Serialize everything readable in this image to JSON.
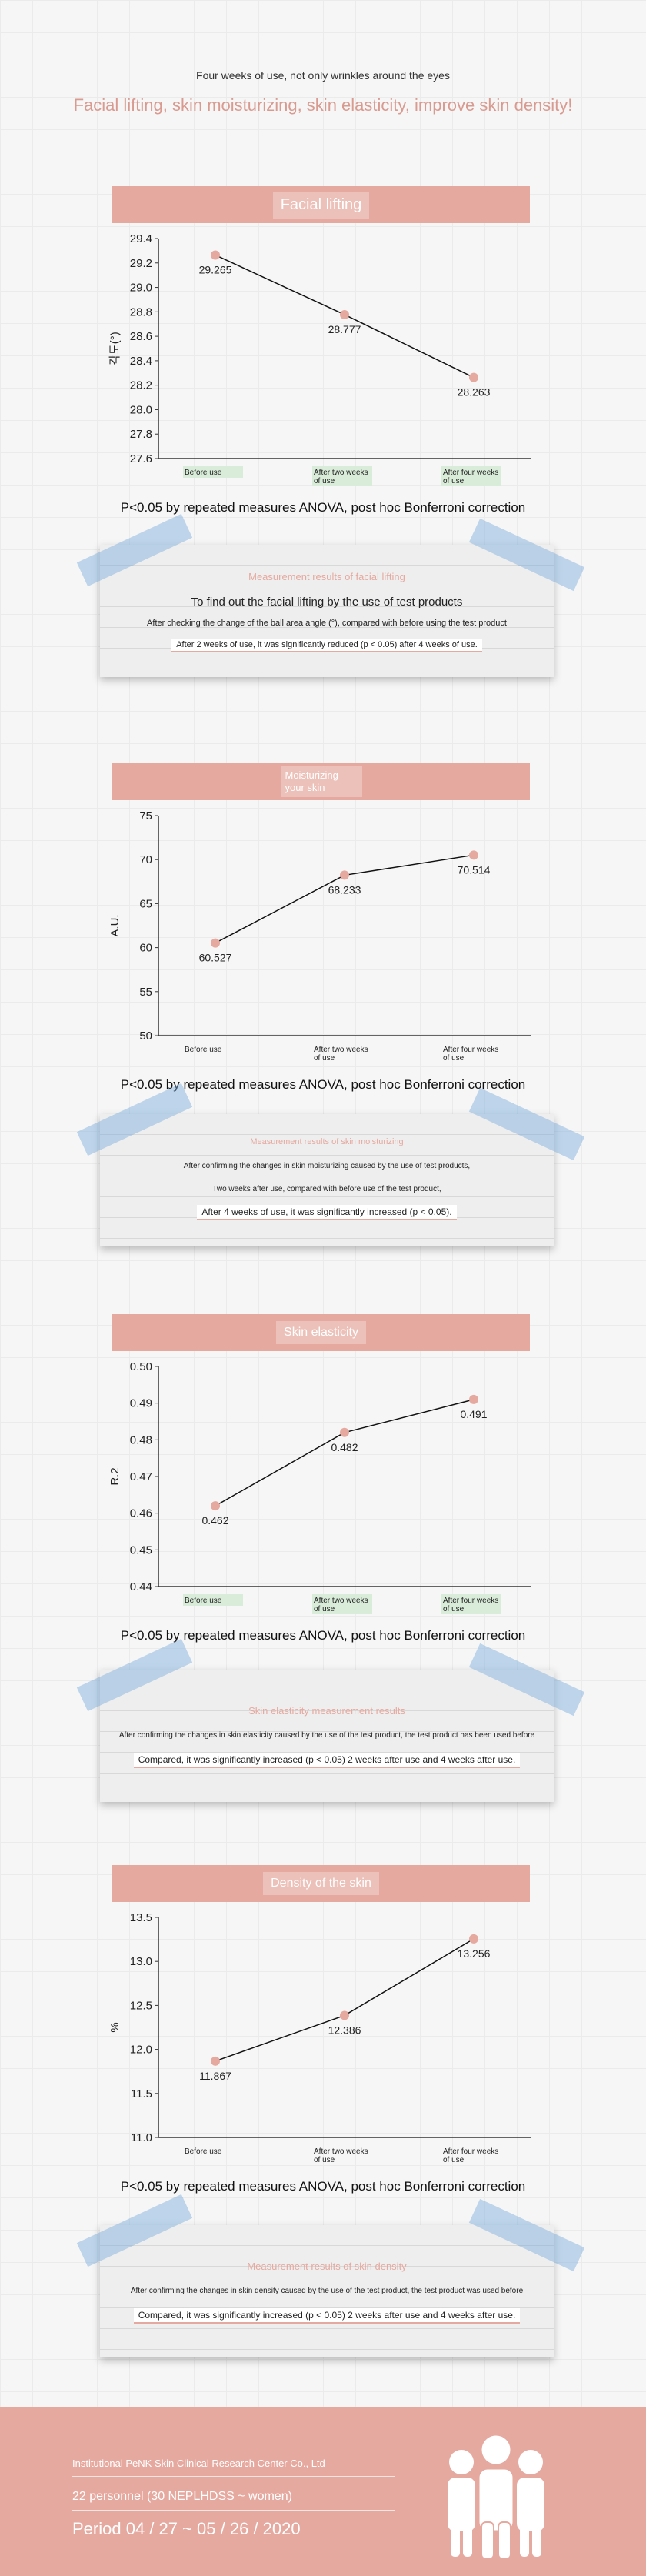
{
  "intro": {
    "subtitle": "Four weeks of use, not only wrinkles around the eyes",
    "title": "Facial lifting, skin moisturizing, skin elasticity, improve skin density!"
  },
  "stat_note": "P<0.05 by repeated measures ANOVA, post hoc Bonferroni correction",
  "sections": [
    {
      "bar_label": "Facial lifting",
      "card": {
        "title": "Measurement results of facial lifting",
        "lines": [
          "To find out the facial lifting by the use of test products",
          "After checking the change of the ball area angle (°), compared with before using the test product",
          "After 2 weeks of use, it was significantly reduced (p < 0.05) after 4 weeks of use."
        ]
      }
    },
    {
      "bar_label": "Moisturizing your skin",
      "card": {
        "title": "Measurement results of skin moisturizing",
        "lines": [
          "After confirming the changes in skin moisturizing caused by the use of test products,",
          "Two weeks after use, compared with before use of the test product,",
          "After 4 weeks of use, it was significantly increased (p < 0.05)."
        ]
      }
    },
    {
      "bar_label": "Skin elasticity",
      "card": {
        "title": "Skin elasticity measurement results",
        "lines": [
          "After confirming the changes in skin elasticity caused by the use of the test product, the test product has been used before",
          "Compared, it was significantly increased (p < 0.05) 2 weeks after use and 4 weeks after use."
        ]
      }
    },
    {
      "bar_label": "Density of the skin",
      "card": {
        "title": "Measurement results of skin density",
        "lines": [
          "After confirming the changes in skin density caused by the use of the test product, the test product was used before",
          "Compared, it was significantly increased (p < 0.05) 2 weeks after use and 4 weeks after use."
        ]
      }
    }
  ],
  "chart_data": [
    {
      "type": "line",
      "categories": [
        "Before use",
        "After two weeks of use",
        "After four weeks of use"
      ],
      "values": [
        29.265,
        28.777,
        28.263
      ],
      "data_labels": [
        "29.265",
        "28.777",
        "28.263"
      ],
      "ylabel": "각도(°)",
      "ylim": [
        27.6,
        29.4
      ],
      "yticks": [
        "29.4",
        "29.2",
        "29.0",
        "28.8",
        "28.6",
        "28.4",
        "28.2",
        "28.0",
        "27.8",
        "27.6"
      ],
      "marker_color": "#e5a99f",
      "category_highlight": "#d9ecd9"
    },
    {
      "type": "line",
      "categories": [
        "Before use",
        "After two weeks of use",
        "After four weeks of use"
      ],
      "values": [
        60.527,
        68.233,
        70.514
      ],
      "data_labels": [
        "60.527",
        "68.233",
        "70.514"
      ],
      "ylabel": "A.U.",
      "ylim": [
        50,
        75
      ],
      "yticks": [
        "75",
        "70",
        "65",
        "60",
        "55",
        "50"
      ],
      "marker_color": "#e5a99f",
      "category_highlight": ""
    },
    {
      "type": "line",
      "categories": [
        "Before use",
        "After two weeks of use",
        "After four weeks of use"
      ],
      "values": [
        0.462,
        0.482,
        0.491
      ],
      "data_labels": [
        "0.462",
        "0.482",
        "0.491"
      ],
      "ylabel": "R.2",
      "ylim": [
        0.44,
        0.5
      ],
      "yticks": [
        "0.50",
        "0.49",
        "0.48",
        "0.47",
        "0.46",
        "0.45",
        "0.44"
      ],
      "marker_color": "#e5a99f",
      "category_highlight": "#d9ecd9"
    },
    {
      "type": "line",
      "categories": [
        "Before use",
        "After two weeks of use",
        "After four weeks of use"
      ],
      "values": [
        11.867,
        12.386,
        13.256
      ],
      "data_labels": [
        "11.867",
        "12.386",
        "13.256"
      ],
      "ylabel": "%",
      "ylim": [
        11.0,
        13.5
      ],
      "yticks": [
        "13.5",
        "13.0",
        "12.5",
        "12.0",
        "11.5",
        "11.0"
      ],
      "marker_color": "#e5a99f",
      "category_highlight": ""
    }
  ],
  "footer": {
    "institution": "Institutional PeNK Skin Clinical Research Center Co., Ltd",
    "personnel": "22 personnel (30 NEPLHDSS ~ women)",
    "period": "Period 04 / 27 ~ 05 / 26 / 2020",
    "icon": "people-group-icon"
  }
}
